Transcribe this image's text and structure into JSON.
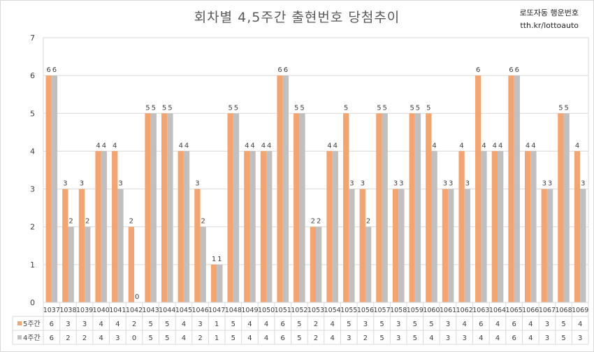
{
  "chart_data": {
    "type": "bar",
    "title": "회차별 4,5주간 출현번호 당첨추이",
    "xlabel": "",
    "ylabel": "",
    "ylim": [
      0,
      7
    ],
    "yticks": [
      0,
      1,
      2,
      3,
      4,
      5,
      6,
      7
    ],
    "grid": true,
    "legend": "data-table",
    "categories": [
      "1037",
      "1038",
      "1039",
      "1040",
      "1041",
      "1042",
      "1043",
      "1044",
      "1045",
      "1046",
      "1047",
      "1048",
      "1049",
      "1050",
      "1051",
      "1052",
      "1053",
      "1054",
      "1055",
      "1056",
      "1057",
      "1058",
      "1059",
      "1060",
      "1061",
      "1062",
      "1063",
      "1064",
      "1065",
      "1066",
      "1067",
      "1068",
      "1069"
    ],
    "series": [
      {
        "name": "5주간",
        "color": "#f4a46e",
        "values": [
          6,
          3,
          3,
          4,
          4,
          2,
          5,
          5,
          4,
          3,
          1,
          5,
          4,
          4,
          6,
          5,
          2,
          4,
          5,
          3,
          5,
          3,
          5,
          5,
          3,
          4,
          6,
          4,
          6,
          4,
          3,
          5,
          4
        ]
      },
      {
        "name": "4주간",
        "color": "#c0c0c0",
        "values": [
          6,
          2,
          2,
          4,
          3,
          0,
          5,
          5,
          4,
          2,
          1,
          5,
          4,
          4,
          6,
          5,
          2,
          4,
          3,
          2,
          5,
          3,
          5,
          4,
          3,
          3,
          4,
          4,
          6,
          4,
          3,
          5,
          3
        ]
      }
    ]
  },
  "brand": {
    "line1": "로또자동 행운번호",
    "line2": "tth.kr/lottoauto"
  }
}
